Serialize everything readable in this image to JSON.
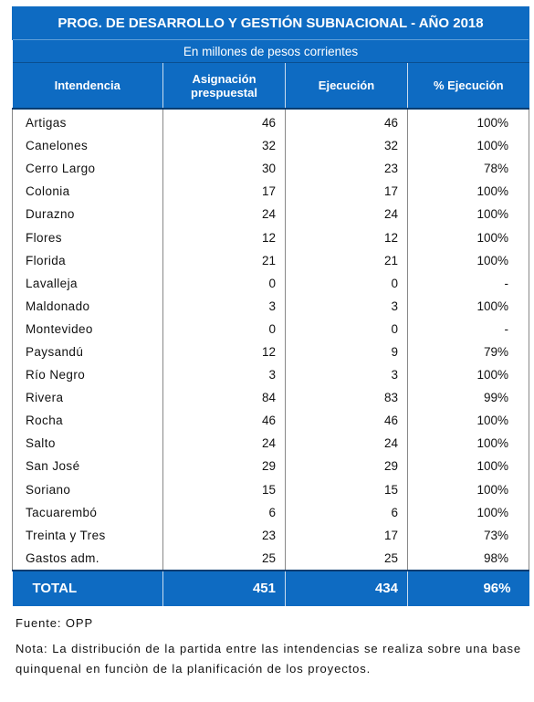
{
  "title": "PROG. DE DESARROLLO Y GESTIÓN SUBNACIONAL - AÑO 2018",
  "subtitle": "En millones de pesos corrientes",
  "columns": {
    "c1": "Intendencia",
    "c2a": "Asignación",
    "c2b": "prespuestal",
    "c3": "Ejecución",
    "c4": "% Ejecución"
  },
  "rows": [
    {
      "name": "Artigas",
      "asignacion": "46",
      "ejecucion": "46",
      "pct": "100%"
    },
    {
      "name": "Canelones",
      "asignacion": "32",
      "ejecucion": "32",
      "pct": "100%"
    },
    {
      "name": "Cerro Largo",
      "asignacion": "30",
      "ejecucion": "23",
      "pct": "78%"
    },
    {
      "name": "Colonia",
      "asignacion": "17",
      "ejecucion": "17",
      "pct": "100%"
    },
    {
      "name": "Durazno",
      "asignacion": "24",
      "ejecucion": "24",
      "pct": "100%"
    },
    {
      "name": "Flores",
      "asignacion": "12",
      "ejecucion": "12",
      "pct": "100%"
    },
    {
      "name": "Florida",
      "asignacion": "21",
      "ejecucion": "21",
      "pct": "100%"
    },
    {
      "name": "Lavalleja",
      "asignacion": "0",
      "ejecucion": "0",
      "pct": "-"
    },
    {
      "name": "Maldonado",
      "asignacion": "3",
      "ejecucion": "3",
      "pct": "100%"
    },
    {
      "name": "Montevideo",
      "asignacion": "0",
      "ejecucion": "0",
      "pct": "-"
    },
    {
      "name": "Paysandú",
      "asignacion": "12",
      "ejecucion": "9",
      "pct": "79%"
    },
    {
      "name": "Río Negro",
      "asignacion": "3",
      "ejecucion": "3",
      "pct": "100%"
    },
    {
      "name": "Rivera",
      "asignacion": "84",
      "ejecucion": "83",
      "pct": "99%"
    },
    {
      "name": "Rocha",
      "asignacion": "46",
      "ejecucion": "46",
      "pct": "100%"
    },
    {
      "name": "Salto",
      "asignacion": "24",
      "ejecucion": "24",
      "pct": "100%"
    },
    {
      "name": "San José",
      "asignacion": "29",
      "ejecucion": "29",
      "pct": "100%"
    },
    {
      "name": "Soriano",
      "asignacion": "15",
      "ejecucion": "15",
      "pct": "100%"
    },
    {
      "name": "Tacuarembó",
      "asignacion": "6",
      "ejecucion": "6",
      "pct": "100%"
    },
    {
      "name": "Treinta y Tres",
      "asignacion": "23",
      "ejecucion": "17",
      "pct": "73%"
    },
    {
      "name": "Gastos adm.",
      "asignacion": "25",
      "ejecucion": "25",
      "pct": "98%"
    }
  ],
  "total": {
    "label": "TOTAL",
    "asignacion": "451",
    "ejecucion": "434",
    "pct": "96%"
  },
  "source": "Fuente: OPP",
  "note": "Nota: La distribución de la partida entre las intendencias se realiza sobre una base quinquenal en funciòn de la planificación de los proyectos.",
  "colors": {
    "header_blue": "#0e6bc2",
    "header_text": "#ffffff"
  }
}
